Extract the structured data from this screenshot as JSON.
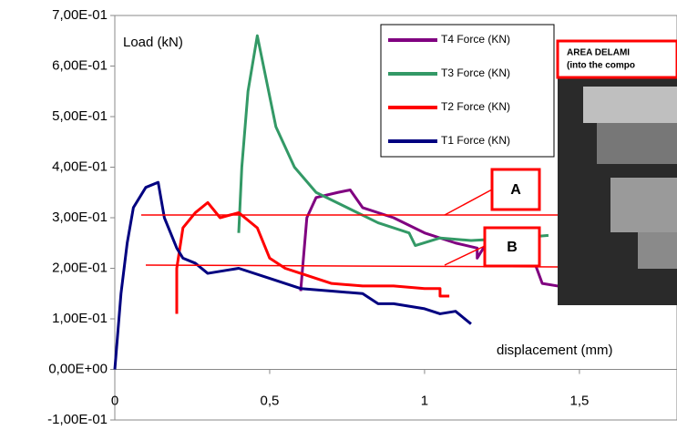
{
  "chart_data": {
    "type": "line",
    "y_label": "Load (kN)",
    "x_label": "displacement (mm)",
    "xlim": [
      0,
      1.815
    ],
    "ylim": [
      -0.1,
      0.7
    ],
    "xticks": [
      0,
      {
        "value": 0.5,
        "label": "0,5"
      },
      1,
      {
        "value": 1.5,
        "label": "1,5"
      }
    ],
    "yticks": [
      {
        "value": -0.1,
        "label": "-1,00E-01"
      },
      {
        "value": 0,
        "label": "0,00E+00"
      },
      {
        "value": 0.1,
        "label": "1,00E-01"
      },
      {
        "value": 0.2,
        "label": "2,00E-01"
      },
      {
        "value": 0.3,
        "label": "3,00E-01"
      },
      {
        "value": 0.4,
        "label": "4,00E-01"
      },
      {
        "value": 0.5,
        "label": "5,00E-01"
      },
      {
        "value": 0.6,
        "label": "6,00E-01"
      },
      {
        "value": 0.7,
        "label": "7,00E-01"
      }
    ],
    "annotations": [
      "A",
      "B"
    ],
    "inset_labels": [
      "AREA DELAMI",
      "(into the compo"
    ],
    "series": [
      {
        "name": "T4 Force (KN)",
        "color": "#800080",
        "x": [
          0.6,
          0.62,
          0.65,
          0.72,
          0.76,
          0.8,
          0.9,
          1.0,
          1.1,
          1.17,
          1.17,
          1.2,
          1.35,
          1.38,
          1.43,
          1.48
        ],
        "values": [
          0.155,
          0.3,
          0.34,
          0.35,
          0.355,
          0.32,
          0.3,
          0.27,
          0.25,
          0.24,
          0.22,
          0.25,
          0.22,
          0.17,
          0.165,
          0.17
        ]
      },
      {
        "name": "T3 Force (KN)",
        "color": "#339966",
        "x": [
          0.4,
          0.41,
          0.43,
          0.46,
          0.48,
          0.52,
          0.58,
          0.65,
          0.75,
          0.85,
          0.95,
          0.97,
          1.05,
          1.15,
          1.3,
          1.4
        ],
        "values": [
          0.27,
          0.4,
          0.55,
          0.66,
          0.6,
          0.48,
          0.4,
          0.35,
          0.32,
          0.29,
          0.27,
          0.245,
          0.26,
          0.255,
          0.26,
          0.265
        ]
      },
      {
        "name": "T2 Force (KN)",
        "color": "#ff0000",
        "x": [
          0.2,
          0.2,
          0.22,
          0.26,
          0.3,
          0.34,
          0.4,
          0.46,
          0.5,
          0.55,
          0.6,
          0.7,
          0.8,
          0.9,
          1.0,
          1.05,
          1.05,
          1.08
        ],
        "values": [
          0.11,
          0.2,
          0.28,
          0.31,
          0.33,
          0.3,
          0.31,
          0.28,
          0.22,
          0.2,
          0.19,
          0.17,
          0.165,
          0.165,
          0.16,
          0.16,
          0.145,
          0.145
        ]
      },
      {
        "name": "T1 Force (KN)",
        "color": "#000080",
        "x": [
          0,
          0.02,
          0.04,
          0.06,
          0.1,
          0.14,
          0.16,
          0.2,
          0.22,
          0.26,
          0.3,
          0.4,
          0.5,
          0.6,
          0.7,
          0.8,
          0.85,
          0.9,
          1.0,
          1.05,
          1.1,
          1.15
        ],
        "values": [
          0,
          0.15,
          0.25,
          0.32,
          0.36,
          0.37,
          0.3,
          0.24,
          0.22,
          0.21,
          0.19,
          0.2,
          0.18,
          0.16,
          0.155,
          0.15,
          0.13,
          0.13,
          0.12,
          0.11,
          0.115,
          0.09
        ]
      }
    ]
  }
}
